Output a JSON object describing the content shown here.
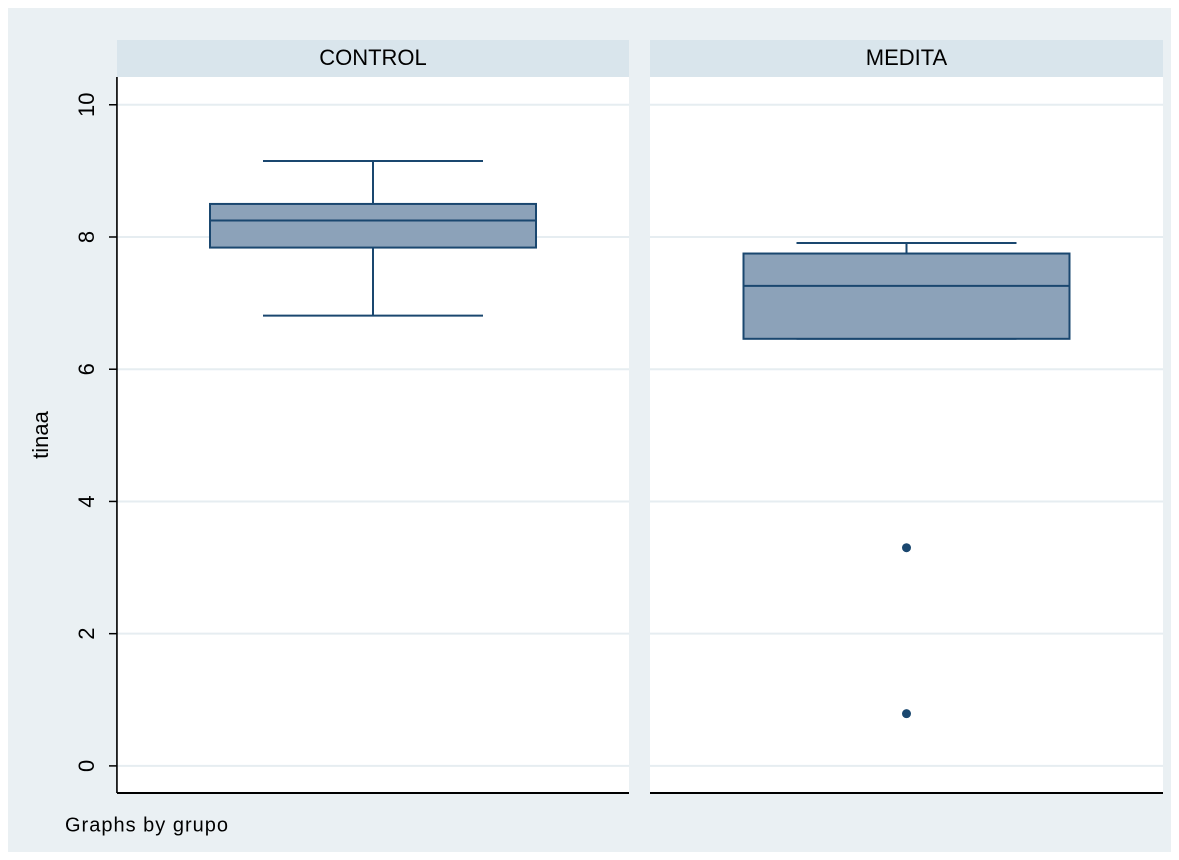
{
  "chart_data": {
    "type": "box",
    "y_label": "tinaa",
    "note": "Graphs by grupo",
    "ylim": [
      -0.41,
      10.42
    ],
    "yticks": [
      0,
      2,
      4,
      6,
      8,
      10
    ],
    "grid": true,
    "color": "#8ca2b9",
    "line_color": "#1a476f",
    "panels": [
      {
        "title": "CONTROL",
        "min": 6.81,
        "q1": 7.84,
        "median": 8.25,
        "q3": 8.5,
        "max": 9.15,
        "outliers": []
      },
      {
        "title": "MEDITA",
        "min": 6.46,
        "q1": 6.46,
        "median": 7.26,
        "q3": 7.75,
        "max": 7.91,
        "outliers": [
          3.3,
          0.79
        ]
      }
    ]
  }
}
